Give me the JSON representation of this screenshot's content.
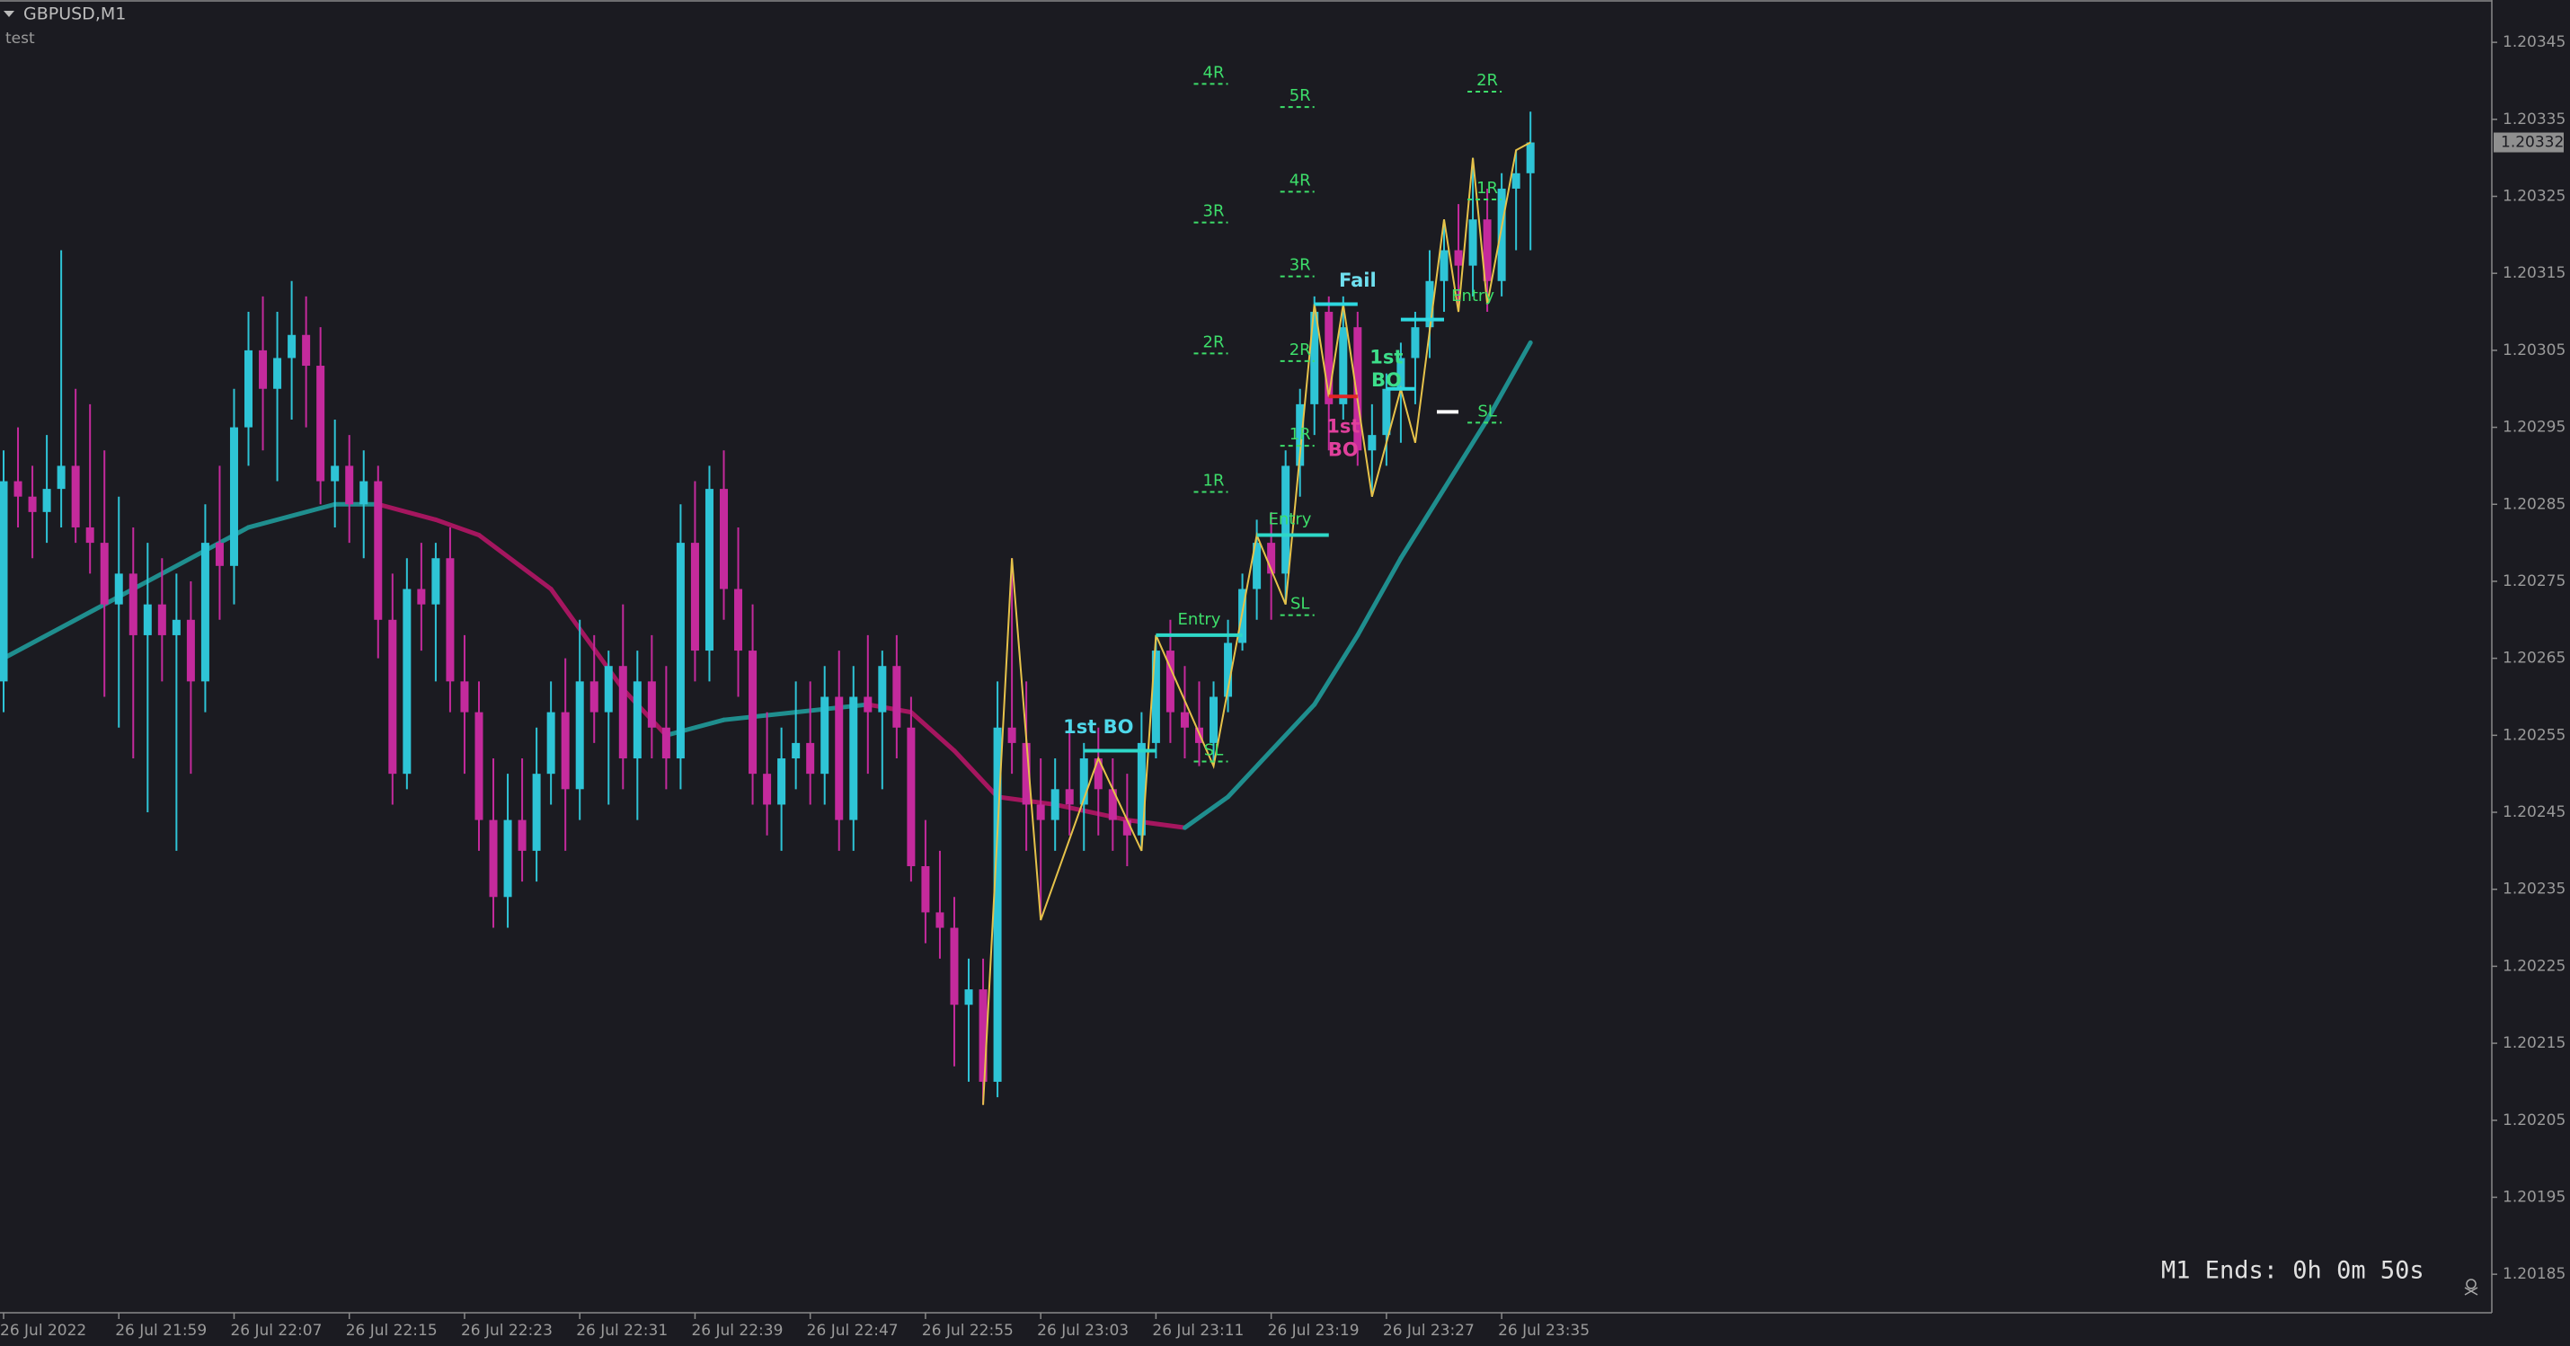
{
  "chart_data": {
    "type": "candlestick",
    "title": "GBPUSD,M1",
    "subtitle": "test",
    "footer": "M1 Ends: 0h 0m 50s",
    "last_price": 1.20332,
    "bull_color": "#2ec4d6",
    "bear_color": "#c42a9c",
    "background": "#1b1b21",
    "ylim": [
      1.2018,
      1.203505
    ],
    "yticks": [
      1.20345,
      1.20335,
      1.20325,
      1.20315,
      1.20305,
      1.20295,
      1.20285,
      1.20275,
      1.20265,
      1.20255,
      1.20245,
      1.20235,
      1.20225,
      1.20215,
      1.20205,
      1.20195,
      1.20185
    ],
    "categories": [
      "26 Jul 2022",
      null,
      null,
      null,
      null,
      null,
      null,
      null,
      "26 Jul 21:59",
      null,
      null,
      null,
      null,
      null,
      null,
      null,
      "26 Jul 22:07",
      null,
      null,
      null,
      null,
      null,
      null,
      null,
      "26 Jul 22:15",
      null,
      null,
      null,
      null,
      null,
      null,
      null,
      "26 Jul 22:23",
      null,
      null,
      null,
      null,
      null,
      null,
      null,
      "26 Jul 22:31",
      null,
      null,
      null,
      null,
      null,
      null,
      null,
      "26 Jul 22:39",
      null,
      null,
      null,
      null,
      null,
      null,
      null,
      "26 Jul 22:47",
      null,
      null,
      null,
      null,
      null,
      null,
      null,
      "26 Jul 22:55",
      null,
      null,
      null,
      null,
      null,
      null,
      null,
      "26 Jul 23:03",
      null,
      null,
      null,
      null,
      null,
      null,
      null,
      "26 Jul 23:11",
      null,
      null,
      null,
      null,
      null,
      null,
      null,
      "26 Jul 23:19",
      null,
      null,
      null,
      null,
      null,
      null,
      null,
      "26 Jul 23:27",
      null,
      null,
      null,
      null,
      null,
      null,
      null,
      "26 Jul 23:35",
      null,
      null
    ],
    "ohlc": [
      [
        1.20262,
        1.20292,
        1.20258,
        1.20288
      ],
      [
        1.20288,
        1.20295,
        1.20282,
        1.20286
      ],
      [
        1.20286,
        1.2029,
        1.20278,
        1.20284
      ],
      [
        1.20284,
        1.20294,
        1.2028,
        1.20287
      ],
      [
        1.20287,
        1.20318,
        1.20282,
        1.2029
      ],
      [
        1.2029,
        1.203,
        1.2028,
        1.20282
      ],
      [
        1.20282,
        1.20298,
        1.20276,
        1.2028
      ],
      [
        1.2028,
        1.20292,
        1.2026,
        1.20272
      ],
      [
        1.20272,
        1.20286,
        1.20256,
        1.20276
      ],
      [
        1.20276,
        1.20282,
        1.20252,
        1.20268
      ],
      [
        1.20268,
        1.2028,
        1.20245,
        1.20272
      ],
      [
        1.20272,
        1.20278,
        1.20262,
        1.20268
      ],
      [
        1.20268,
        1.20276,
        1.2024,
        1.2027
      ],
      [
        1.2027,
        1.20275,
        1.2025,
        1.20262
      ],
      [
        1.20262,
        1.20285,
        1.20258,
        1.2028
      ],
      [
        1.2028,
        1.2029,
        1.2027,
        1.20277
      ],
      [
        1.20277,
        1.203,
        1.20272,
        1.20295
      ],
      [
        1.20295,
        1.2031,
        1.2029,
        1.20305
      ],
      [
        1.20305,
        1.20312,
        1.20292,
        1.203
      ],
      [
        1.203,
        1.2031,
        1.20288,
        1.20304
      ],
      [
        1.20304,
        1.20314,
        1.20296,
        1.20307
      ],
      [
        1.20307,
        1.20312,
        1.20295,
        1.20303
      ],
      [
        1.20303,
        1.20308,
        1.20285,
        1.20288
      ],
      [
        1.20288,
        1.20296,
        1.20282,
        1.2029
      ],
      [
        1.2029,
        1.20294,
        1.2028,
        1.20285
      ],
      [
        1.20285,
        1.20292,
        1.20278,
        1.20288
      ],
      [
        1.20288,
        1.2029,
        1.20265,
        1.2027
      ],
      [
        1.2027,
        1.20276,
        1.20246,
        1.2025
      ],
      [
        1.2025,
        1.20278,
        1.20248,
        1.20274
      ],
      [
        1.20274,
        1.2028,
        1.20266,
        1.20272
      ],
      [
        1.20272,
        1.2028,
        1.20262,
        1.20278
      ],
      [
        1.20278,
        1.20282,
        1.20258,
        1.20262
      ],
      [
        1.20262,
        1.20268,
        1.2025,
        1.20258
      ],
      [
        1.20258,
        1.20262,
        1.2024,
        1.20244
      ],
      [
        1.20244,
        1.20252,
        1.2023,
        1.20234
      ],
      [
        1.20234,
        1.2025,
        1.2023,
        1.20244
      ],
      [
        1.20244,
        1.20252,
        1.20236,
        1.2024
      ],
      [
        1.2024,
        1.20256,
        1.20236,
        1.2025
      ],
      [
        1.2025,
        1.20262,
        1.20246,
        1.20258
      ],
      [
        1.20258,
        1.20265,
        1.2024,
        1.20248
      ],
      [
        1.20248,
        1.2027,
        1.20244,
        1.20262
      ],
      [
        1.20262,
        1.20268,
        1.20254,
        1.20258
      ],
      [
        1.20258,
        1.20266,
        1.20246,
        1.20264
      ],
      [
        1.20264,
        1.20272,
        1.20248,
        1.20252
      ],
      [
        1.20252,
        1.20266,
        1.20244,
        1.20262
      ],
      [
        1.20262,
        1.20268,
        1.20252,
        1.20256
      ],
      [
        1.20256,
        1.20264,
        1.20248,
        1.20252
      ],
      [
        1.20252,
        1.20285,
        1.20248,
        1.2028
      ],
      [
        1.2028,
        1.20288,
        1.20262,
        1.20266
      ],
      [
        1.20266,
        1.2029,
        1.20262,
        1.20287
      ],
      [
        1.20287,
        1.20292,
        1.2027,
        1.20274
      ],
      [
        1.20274,
        1.20282,
        1.2026,
        1.20266
      ],
      [
        1.20266,
        1.20272,
        1.20246,
        1.2025
      ],
      [
        1.2025,
        1.20258,
        1.20242,
        1.20246
      ],
      [
        1.20246,
        1.20256,
        1.2024,
        1.20252
      ],
      [
        1.20252,
        1.20262,
        1.20248,
        1.20254
      ],
      [
        1.20254,
        1.20262,
        1.20246,
        1.2025
      ],
      [
        1.2025,
        1.20264,
        1.20246,
        1.2026
      ],
      [
        1.2026,
        1.20266,
        1.2024,
        1.20244
      ],
      [
        1.20244,
        1.20264,
        1.2024,
        1.2026
      ],
      [
        1.2026,
        1.20268,
        1.2025,
        1.20258
      ],
      [
        1.20258,
        1.20266,
        1.20248,
        1.20264
      ],
      [
        1.20264,
        1.20268,
        1.20252,
        1.20256
      ],
      [
        1.20256,
        1.2026,
        1.20236,
        1.20238
      ],
      [
        1.20238,
        1.20244,
        1.20228,
        1.20232
      ],
      [
        1.20232,
        1.2024,
        1.20226,
        1.2023
      ],
      [
        1.2023,
        1.20234,
        1.20212,
        1.2022
      ],
      [
        1.2022,
        1.20226,
        1.2021,
        1.20222
      ],
      [
        1.20222,
        1.20226,
        1.20207,
        1.2021
      ],
      [
        1.2021,
        1.20262,
        1.20208,
        1.20256
      ],
      [
        1.20256,
        1.20278,
        1.2025,
        1.20254
      ],
      [
        1.20254,
        1.20262,
        1.2024,
        1.20246
      ],
      [
        1.20246,
        1.20252,
        1.20231,
        1.20244
      ],
      [
        1.20244,
        1.20252,
        1.2024,
        1.20248
      ],
      [
        1.20248,
        1.20256,
        1.20242,
        1.20246
      ],
      [
        1.20246,
        1.20254,
        1.2024,
        1.20252
      ],
      [
        1.20252,
        1.20256,
        1.20242,
        1.20248
      ],
      [
        1.20248,
        1.20252,
        1.2024,
        1.20244
      ],
      [
        1.20244,
        1.2025,
        1.20238,
        1.20242
      ],
      [
        1.20242,
        1.20258,
        1.2024,
        1.20254
      ],
      [
        1.20254,
        1.20268,
        1.20252,
        1.20266
      ],
      [
        1.20266,
        1.2027,
        1.20254,
        1.20258
      ],
      [
        1.20258,
        1.20264,
        1.20252,
        1.20256
      ],
      [
        1.20256,
        1.20262,
        1.20251,
        1.20254
      ],
      [
        1.20254,
        1.20262,
        1.20251,
        1.2026
      ],
      [
        1.2026,
        1.2027,
        1.20258,
        1.20267
      ],
      [
        1.20267,
        1.20276,
        1.20266,
        1.20274
      ],
      [
        1.20274,
        1.20283,
        1.2027,
        1.2028
      ],
      [
        1.2028,
        1.20284,
        1.2027,
        1.20276
      ],
      [
        1.20276,
        1.20292,
        1.20272,
        1.2029
      ],
      [
        1.2029,
        1.203,
        1.20286,
        1.20298
      ],
      [
        1.20298,
        1.20312,
        1.20294,
        1.2031
      ],
      [
        1.2031,
        1.20312,
        1.20292,
        1.20298
      ],
      [
        1.20298,
        1.20312,
        1.20296,
        1.20308
      ],
      [
        1.20308,
        1.2031,
        1.2029,
        1.20292
      ],
      [
        1.20292,
        1.20298,
        1.20286,
        1.20294
      ],
      [
        1.20294,
        1.20302,
        1.2029,
        1.203
      ],
      [
        1.203,
        1.20306,
        1.20293,
        1.20304
      ],
      [
        1.20304,
        1.2031,
        1.20298,
        1.20308
      ],
      [
        1.20308,
        1.20318,
        1.20304,
        1.20314
      ],
      [
        1.20314,
        1.20322,
        1.2031,
        1.20318
      ],
      [
        1.20318,
        1.20324,
        1.2031,
        1.20316
      ],
      [
        1.20316,
        1.2033,
        1.20312,
        1.20322
      ],
      [
        1.20322,
        1.20326,
        1.2031,
        1.20314
      ],
      [
        1.20314,
        1.20328,
        1.20312,
        1.20326
      ],
      [
        1.20326,
        1.20331,
        1.20318,
        1.20328
      ],
      [
        1.20328,
        1.20336,
        1.20318,
        1.20332
      ]
    ],
    "ma": {
      "up_color": "#1f8e8e",
      "down_color": "#a5165f",
      "x": [
        0,
        10,
        17,
        23,
        26,
        30,
        33,
        38,
        43,
        46,
        50,
        55,
        60,
        63,
        66,
        69,
        73,
        78,
        82,
        85,
        88,
        91,
        94,
        97,
        100,
        103,
        106
      ],
      "values": [
        1.20265,
        1.20275,
        1.20282,
        1.20285,
        1.20285,
        1.20283,
        1.20281,
        1.20274,
        1.20261,
        1.20255,
        1.20257,
        1.20258,
        1.20259,
        1.20258,
        1.20253,
        1.20247,
        1.20246,
        1.20244,
        1.20243,
        1.20247,
        1.20253,
        1.20259,
        1.20268,
        1.20278,
        1.20287,
        1.20296,
        1.20306
      ]
    },
    "zigzag": {
      "color": "#e6c24a",
      "x": [
        68,
        70,
        72,
        76,
        79,
        80,
        84,
        87,
        89,
        91,
        92,
        93,
        95,
        97,
        98,
        100,
        101,
        102,
        103,
        105,
        106
      ],
      "values": [
        1.20207,
        1.20278,
        1.20231,
        1.20252,
        1.2024,
        1.20268,
        1.20251,
        1.20281,
        1.20272,
        1.20311,
        1.20299,
        1.20311,
        1.20286,
        1.203,
        1.20293,
        1.20322,
        1.2031,
        1.2033,
        1.20311,
        1.20331,
        1.20332
      ]
    },
    "levels": [
      {
        "x": [
          75,
          80
        ],
        "price": 1.20253,
        "color": "#2ed8c8"
      },
      {
        "x": [
          80,
          86
        ],
        "price": 1.20268,
        "color": "#2ed8c8"
      },
      {
        "x": [
          87,
          92
        ],
        "price": 1.20281,
        "color": "#2ed8c8"
      },
      {
        "x": [
          91,
          94
        ],
        "price": 1.20311,
        "color": "#2ed8e0"
      },
      {
        "x": [
          92,
          94
        ],
        "price": 1.20299,
        "color": "#e02424"
      },
      {
        "x": [
          96,
          98
        ],
        "price": 1.203,
        "color": "#2ed8e0"
      },
      {
        "x": [
          97,
          100
        ],
        "price": 1.20309,
        "color": "#2ed8e0"
      },
      {
        "x": [
          99.5,
          101
        ],
        "price": 1.20297,
        "color": "#ffffff"
      }
    ],
    "annotations": [
      {
        "text": "1st BO",
        "x": 76,
        "price": 1.20256,
        "color": "#4fd8ea",
        "bold": true
      },
      {
        "text": "Entry",
        "x": 83,
        "price": 1.2027,
        "color": "#3dde6a"
      },
      {
        "text": "SL",
        "x": 84,
        "price": 1.20253,
        "color": "#3dde6a",
        "target": true
      },
      {
        "text": "1R",
        "x": 84,
        "price": 1.20288,
        "color": "#3dde6a",
        "target": true
      },
      {
        "text": "2R",
        "x": 84,
        "price": 1.20306,
        "color": "#3dde6a",
        "target": true
      },
      {
        "text": "3R",
        "x": 84,
        "price": 1.20323,
        "color": "#3dde6a",
        "target": true
      },
      {
        "text": "4R",
        "x": 84,
        "price": 1.20341,
        "color": "#3dde6a",
        "target": true
      },
      {
        "text": "Entry",
        "x": 89.3,
        "price": 1.20283,
        "color": "#3dde6a"
      },
      {
        "text": "SL",
        "x": 90,
        "price": 1.20272,
        "color": "#3dde6a",
        "target": true
      },
      {
        "text": "1R",
        "x": 90,
        "price": 1.20294,
        "color": "#3dde6a",
        "target": true
      },
      {
        "text": "2R",
        "x": 90,
        "price": 1.20305,
        "color": "#3dde6a",
        "target": true
      },
      {
        "text": "3R",
        "x": 90,
        "price": 1.20316,
        "color": "#3dde6a",
        "target": true
      },
      {
        "text": "4R",
        "x": 90,
        "price": 1.20327,
        "color": "#3dde6a",
        "target": true
      },
      {
        "text": "5R",
        "x": 90,
        "price": 1.20338,
        "color": "#3dde6a",
        "target": true
      },
      {
        "text": "Fail",
        "x": 94,
        "price": 1.20314,
        "color": "#6fe0f0",
        "bold": true
      },
      {
        "text": "1st",
        "x": 93,
        "price": 1.20295,
        "color": "#e0409c",
        "bold": true
      },
      {
        "text": "BO",
        "x": 93,
        "price": 1.20292,
        "color": "#e0409c",
        "bold": true
      },
      {
        "text": "1st",
        "x": 96,
        "price": 1.20304,
        "color": "#3dde8a",
        "bold": true
      },
      {
        "text": "BO",
        "x": 96,
        "price": 1.20301,
        "color": "#3dde8a",
        "bold": true
      },
      {
        "text": "Entry",
        "x": 102,
        "price": 1.20312,
        "color": "#3dde6a"
      },
      {
        "text": "SL",
        "x": 103,
        "price": 1.20297,
        "color": "#3dde6a",
        "target": true
      },
      {
        "text": "1R",
        "x": 103,
        "price": 1.20326,
        "color": "#3dde6a",
        "target": true
      },
      {
        "text": "2R",
        "x": 103,
        "price": 1.2034,
        "color": "#3dde6a",
        "target": true
      }
    ]
  }
}
